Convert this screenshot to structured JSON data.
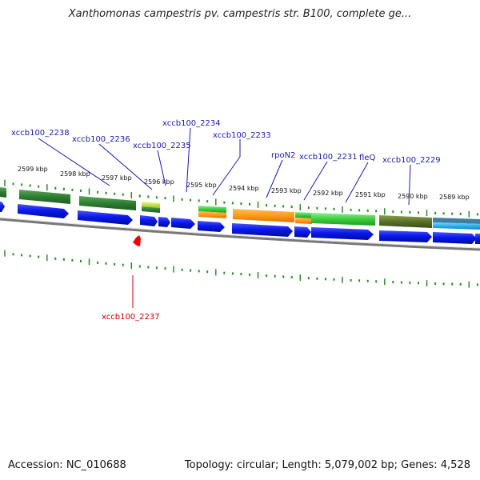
{
  "title": "Xanthomonas campestris pv. campestris str. B100, complete ge...",
  "footer": {
    "accession": "Accession: NC_010688",
    "summary": "Topology: circular; Length: 5,079,002 bp; Genes: 4,528"
  },
  "colors": {
    "forward_gene": "#0a19ee",
    "reverse_gene_label": "#cc0000",
    "label_line_top": "#1a1aa6",
    "tick": "#2a8a2a",
    "backbone": "#777777"
  },
  "ruler": {
    "labels": [
      "2599 kbp",
      "2598 kbp",
      "2597 kbp",
      "2596 kbp",
      "2595 kbp",
      "2594 kbp",
      "2593 kbp",
      "2592 kbp",
      "2591 kbp",
      "2590 kbp",
      "2589 kbp"
    ]
  },
  "gene_labels_top": [
    "xccb100_2238",
    "xccb100_2236",
    "xccb100_2235",
    "xccb100_2234",
    "xccb100_2233",
    "rpoN2",
    "xccb100_2231",
    "fleQ",
    "xccb100_2229"
  ],
  "gene_labels_bottom": [
    "xccb100_2237"
  ]
}
